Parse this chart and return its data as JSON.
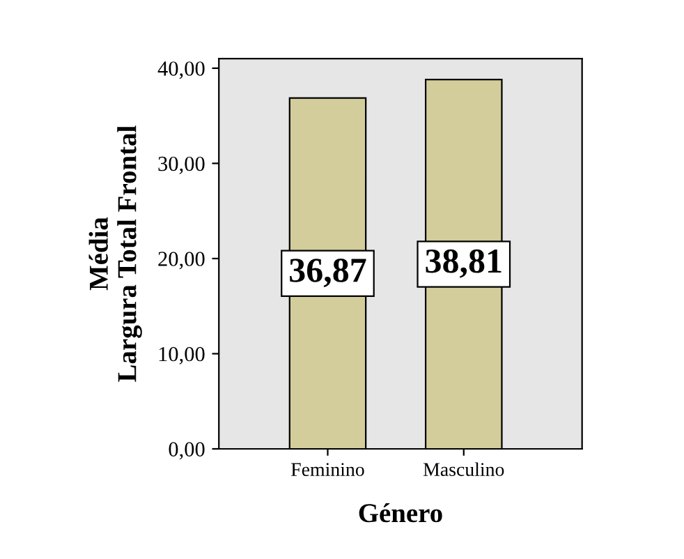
{
  "chart_data": {
    "type": "bar",
    "xlabel": "Género",
    "ylabel": "Média\nLargura Total Frontal",
    "categories": [
      "Feminino",
      "Masculino"
    ],
    "values": [
      36.87,
      38.81
    ],
    "color": "#d3cd9b",
    "value_labels": [
      "36,87",
      "38,81"
    ],
    "ylim": [
      0,
      41
    ],
    "yticks": [
      {
        "value": 0,
        "label": "0,00"
      },
      {
        "value": 10,
        "label": "10,00"
      },
      {
        "value": 20,
        "label": "20,00"
      },
      {
        "value": 30,
        "label": "30,00"
      },
      {
        "value": 40,
        "label": "40,00"
      }
    ],
    "grid": false
  }
}
